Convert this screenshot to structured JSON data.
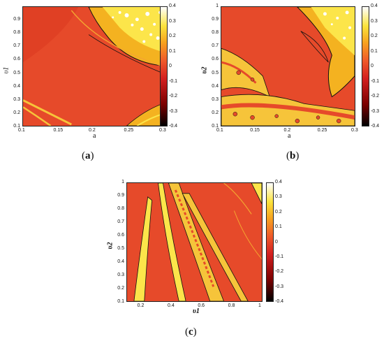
{
  "chart_data": [
    {
      "type": "heatmap",
      "caption": "(a)",
      "xlabel": "a",
      "ylabel": "υ1",
      "xlim": [
        0.1,
        0.3
      ],
      "ylim": [
        0.1,
        1.0
      ],
      "xticks": [
        "0.1",
        "0.15",
        "0.2",
        "0.25",
        "0.3"
      ],
      "yticks": [
        "0.1",
        "0.2",
        "0.3",
        "0.4",
        "0.5",
        "0.6",
        "0.7",
        "0.8",
        "0.9"
      ],
      "colorbar": {
        "range": [
          -0.4,
          0.4
        ],
        "ticks": [
          "0.4",
          "0.3",
          "0.2",
          "0.1",
          "0",
          "-0.1",
          "-0.2",
          "-0.3",
          "-0.4"
        ]
      },
      "description": "Mostly red (about -0.1) background; bright yellow/white region (0.2 to 0.4) in upper right for a > 0.2 and υ1 > 0.75; thin yellow bands along lower left and lower right corners."
    },
    {
      "type": "heatmap",
      "caption": "(b)",
      "xlabel": "a",
      "ylabel": "υ2",
      "xlim": [
        0.1,
        0.3
      ],
      "ylim": [
        0.1,
        1.0
      ],
      "xticks": [
        "0.1",
        "0.15",
        "0.2",
        "0.25",
        "0.3"
      ],
      "yticks": [
        "0.1",
        "0.2",
        "0.3",
        "0.4",
        "0.5",
        "0.6",
        "0.7",
        "0.8",
        "0.9",
        "1"
      ],
      "colorbar": {
        "range": [
          -0.4,
          0.4
        ],
        "ticks": [
          "0.4",
          "0.3",
          "0.2",
          "0.1",
          "0",
          "-0.1",
          "-0.2",
          "-0.3",
          "-0.4"
        ]
      },
      "description": "Red background; speckled yellow region in upper right (a > 0.22, υ2 > 0.6); fragmented yellow bands at left (υ2 between 0.2 and 0.75) and along the bottom."
    },
    {
      "type": "heatmap",
      "caption": "(c)",
      "xlabel": "υ1",
      "ylabel": "υ2",
      "xlim": [
        0.1,
        1.0
      ],
      "ylim": [
        0.1,
        1.0
      ],
      "xticks": [
        "0.2",
        "0.4",
        "0.6",
        "0.8",
        "1"
      ],
      "yticks": [
        "0.1",
        "0.2",
        "0.3",
        "0.4",
        "0.5",
        "0.6",
        "0.7",
        "0.8",
        "0.9",
        "1"
      ],
      "colorbar": {
        "range": [
          -0.4,
          0.4
        ],
        "ticks": [
          "0.4",
          "0.3",
          "0.2",
          "0.1",
          "0",
          "-0.1",
          "-0.2",
          "-0.3",
          "-0.4"
        ]
      },
      "description": "Red background; several slanted yellow streaks radiating from upper-left (υ1 0.2 to 0.8); yellow wedge at upper right corner."
    }
  ]
}
